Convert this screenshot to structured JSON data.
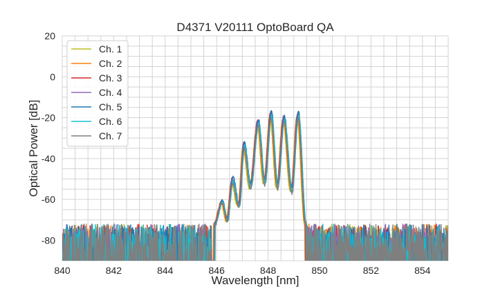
{
  "chart_data": {
    "type": "line",
    "title": "D4371 V20111 OptoBoard QA",
    "xlabel": "Wavelength [nm]",
    "ylabel": "Optical Power [dB]",
    "xlim": [
      840,
      855
    ],
    "ylim": [
      -90,
      20
    ],
    "xticks": [
      840,
      842,
      844,
      846,
      848,
      850,
      852,
      854
    ],
    "yticks": [
      20,
      0,
      -20,
      -40,
      -60,
      -80
    ],
    "grid": true,
    "legend_position": "top-left",
    "noise_floor_db": [
      -90,
      -72
    ],
    "spectrum_features": [
      {
        "wl": 845.9,
        "db": -72
      },
      {
        "wl": 846.2,
        "db": -61
      },
      {
        "wl": 846.4,
        "db": -70
      },
      {
        "wl": 846.6,
        "db": -50
      },
      {
        "wl": 846.85,
        "db": -63
      },
      {
        "wl": 847.05,
        "db": -33
      },
      {
        "wl": 847.3,
        "db": -53
      },
      {
        "wl": 847.6,
        "db": -22
      },
      {
        "wl": 847.85,
        "db": -51
      },
      {
        "wl": 848.1,
        "db": -18
      },
      {
        "wl": 848.35,
        "db": -53
      },
      {
        "wl": 848.6,
        "db": -20
      },
      {
        "wl": 848.9,
        "db": -55
      },
      {
        "wl": 849.15,
        "db": -18
      },
      {
        "wl": 849.45,
        "db": -72
      }
    ],
    "series": [
      {
        "name": "Ch. 1",
        "color": "#bcbd22",
        "offset_db": -1.5,
        "shift_nm": -0.03
      },
      {
        "name": "Ch. 2",
        "color": "#ff7f0e",
        "offset_db": -0.5,
        "shift_nm": -0.01
      },
      {
        "name": "Ch. 3",
        "color": "#d62728",
        "offset_db": 0.5,
        "shift_nm": 0.0
      },
      {
        "name": "Ch. 4",
        "color": "#9467bd",
        "offset_db": 0.3,
        "shift_nm": 0.01
      },
      {
        "name": "Ch. 5",
        "color": "#1f77b4",
        "offset_db": 1.0,
        "shift_nm": 0.03
      },
      {
        "name": "Ch. 6",
        "color": "#17becf",
        "offset_db": -1.0,
        "shift_nm": 0.04
      },
      {
        "name": "Ch. 7",
        "color": "#7f7f7f",
        "offset_db": -2.0,
        "shift_nm": 0.02
      }
    ]
  }
}
